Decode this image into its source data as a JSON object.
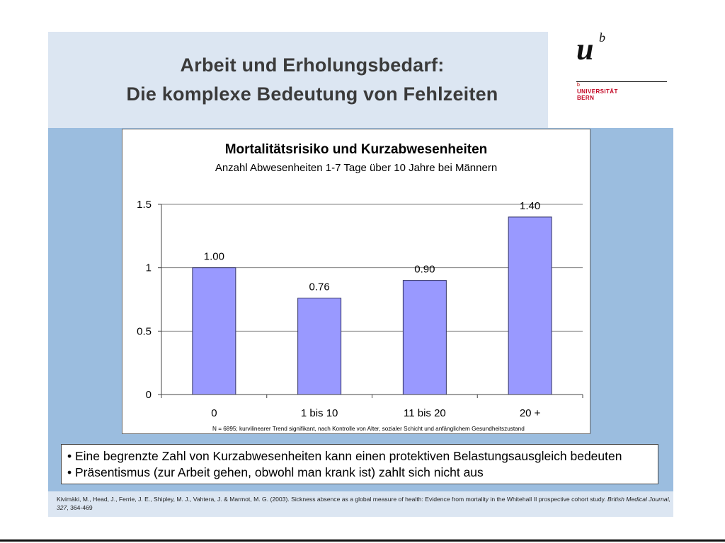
{
  "slide": {
    "title_line1": "Arbeit und  Erholungsbedarf:",
    "title_line2": "Die komplexe Bedeutung von Fehlzeiten"
  },
  "logo": {
    "u": "u",
    "b": "b",
    "small_b": "b",
    "line1": "UNIVERSITÄT",
    "line2": "BERN"
  },
  "bullets": [
    "• Eine begrenzte Zahl von Kurzabwesenheiten kann einen protektiven Belastungsausgleich bedeuten",
    "• Präsentismus (zur Arbeit gehen, obwohl man krank ist) zahlt sich nicht aus"
  ],
  "citation": {
    "plain": "Kivimäki, M., Head, J., Ferrie, J. E., Shipley, M. J., Vahtera, J. & Marmot, M. G. (2003). Sickness absence as a global measure of health: Evidence from mortality in the Whitehall II prospective cohort study. ",
    "italic": "British Medical Journal, 327",
    "tail": ", 364-469"
  },
  "colors": {
    "bar": "#9999ff",
    "bar_stroke": "#333366",
    "panel": "#9bbddf",
    "header_band": "#dce6f2",
    "logo_red": "#c1001f"
  },
  "chart_data": {
    "type": "bar",
    "title": "Mortalitätsrisiko und Kurzabwesenheiten",
    "subtitle": "Anzahl Abwesenheiten 1-7 Tage über 10 Jahre bei Männern",
    "categories": [
      "0",
      "1 bis 10",
      "11 bis 20",
      "20 +"
    ],
    "values": [
      1.0,
      0.76,
      0.9,
      1.4
    ],
    "data_labels": [
      "1.00",
      "0.76",
      "0.90",
      "1.40"
    ],
    "yticks": [
      0,
      0.5,
      1,
      1.5
    ],
    "ytick_labels": [
      "0",
      "0.5",
      "1",
      "1.5"
    ],
    "ylim": [
      0,
      1.5
    ],
    "grid": true,
    "xlabel": "",
    "ylabel": "",
    "footnote": "N = 6895; kurvilinearer Trend signifikant, nach Kontrolle von Alter, sozialer Schicht und anfänglichem Gesundheitszustand"
  }
}
